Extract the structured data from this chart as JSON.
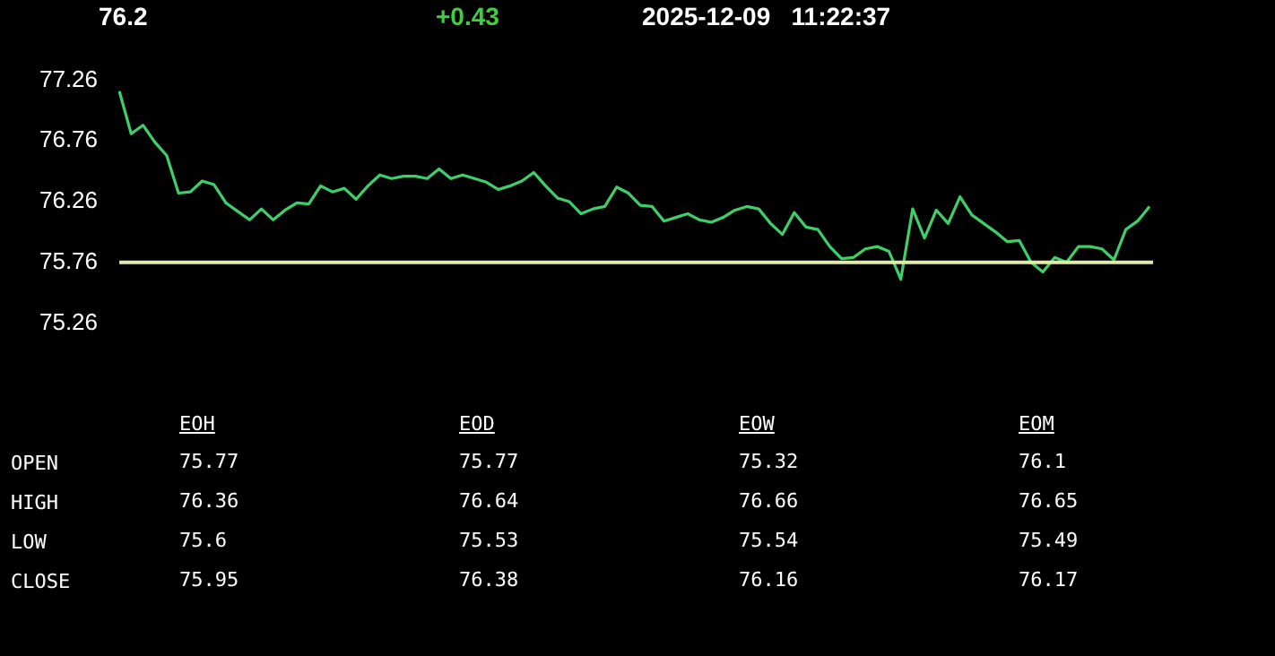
{
  "chart_data": [
    {
      "type": "line",
      "annotations": [
        "76.2",
        "+0.43",
        "2025-12-09   11:22:37"
      ],
      "categories": [
        null,
        null,
        null,
        null,
        null,
        null,
        null,
        null,
        null,
        null,
        null,
        null,
        null,
        null,
        null,
        null,
        null,
        null,
        null,
        null,
        null,
        null,
        null,
        null,
        null,
        null,
        null,
        null,
        null,
        null,
        null,
        null,
        null,
        null,
        null,
        null,
        null,
        null,
        null,
        null,
        null,
        null,
        null,
        null,
        null,
        null,
        null,
        null,
        null,
        null,
        null,
        null,
        null,
        null,
        null,
        null,
        null,
        null,
        null,
        null,
        null,
        null,
        null,
        null,
        null,
        null,
        null,
        null,
        null,
        null,
        null,
        null,
        null,
        null,
        null,
        null,
        null,
        null,
        null,
        null,
        null,
        null,
        null,
        null,
        null,
        null,
        null,
        null
      ],
      "series": [
        {
          "color": "#3ecf6a",
          "values": [
            77.17,
            76.82,
            76.89,
            76.75,
            76.64,
            76.33,
            76.34,
            76.43,
            76.4,
            76.25,
            76.18,
            76.11,
            76.2,
            76.11,
            76.19,
            76.25,
            76.24,
            76.39,
            76.34,
            76.37,
            76.28,
            76.39,
            76.48,
            76.45,
            76.47,
            76.47,
            76.45,
            76.53,
            76.45,
            76.48,
            76.45,
            76.42,
            76.36,
            76.39,
            76.43,
            76.5,
            76.39,
            76.29,
            76.26,
            76.16,
            76.2,
            76.22,
            76.38,
            76.33,
            76.23,
            76.22,
            76.1,
            76.13,
            76.16,
            76.11,
            76.09,
            76.13,
            76.19,
            76.22,
            76.2,
            76.08,
            75.99,
            76.17,
            76.05,
            76.03,
            75.89,
            75.79,
            75.8,
            75.87,
            75.89,
            75.85,
            75.62,
            76.2,
            75.96,
            76.19,
            76.08,
            76.3,
            76.15,
            76.08,
            76.01,
            75.93,
            75.94,
            75.76,
            75.68,
            75.8,
            75.76,
            75.89,
            75.89,
            75.87,
            75.78,
            76.03,
            76.1,
            76.22
          ]
        }
      ],
      "ylim": [
        75.26,
        77.26
      ],
      "yticks": [
        75.26,
        75.76,
        76.26,
        76.76,
        77.26
      ],
      "ref_lines": [
        {
          "axis": "y",
          "value": 75.76,
          "color": "#e3eca2"
        }
      ],
      "line_style": "solid"
    },
    {
      "type": "other",
      "categories": [
        "EOH",
        "EOD",
        "EOW",
        "EOM"
      ],
      "y_categories": [
        "OPEN",
        "HIGH",
        "LOW",
        "CLOSE"
      ],
      "cell_labels": [
        [
          "75.77",
          "75.77",
          "75.32",
          "76.1"
        ],
        [
          "76.36",
          "76.64",
          "76.66",
          "76.65"
        ],
        [
          "75.6",
          "75.53",
          "75.54",
          "75.49"
        ],
        [
          "75.95",
          "76.38",
          "76.16",
          "76.17"
        ]
      ]
    }
  ]
}
